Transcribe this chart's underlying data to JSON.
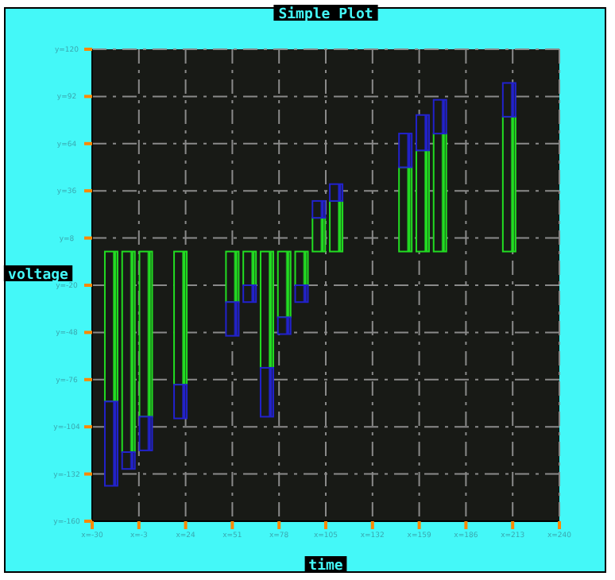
{
  "chart_data": {
    "type": "bar",
    "stacked": true,
    "title": "Simple Plot",
    "xlabel": "time",
    "ylabel": "voltage",
    "x": [
      -19,
      -9,
      1,
      21,
      51,
      61,
      71,
      81,
      91,
      101,
      111,
      151,
      161,
      171,
      211
    ],
    "series": [
      {
        "color": "#22dd22",
        "values": [
          -89,
          -119,
          -98,
          -79,
          -30,
          -20,
          -69,
          -39,
          -20,
          20,
          30,
          50,
          60,
          70,
          80
        ]
      },
      {
        "color": "#2222cc",
        "values": [
          -50,
          -10,
          -20,
          -20,
          -20,
          -10,
          -29,
          -10,
          -10,
          10,
          10,
          20,
          21,
          20,
          20
        ]
      }
    ],
    "xlim": [
      -30,
      240
    ],
    "ylim": [
      -160,
      120
    ],
    "xticks": [
      {
        "value": -30,
        "label": "x=-30"
      },
      {
        "value": -3,
        "label": "x=-3"
      },
      {
        "value": 24,
        "label": "x=24"
      },
      {
        "value": 51,
        "label": "x=51"
      },
      {
        "value": 78,
        "label": "x=78"
      },
      {
        "value": 105,
        "label": "x=105"
      },
      {
        "value": 132,
        "label": "x=132"
      },
      {
        "value": 159,
        "label": "x=159"
      },
      {
        "value": 186,
        "label": "x=186"
      },
      {
        "value": 213,
        "label": "x=213"
      },
      {
        "value": 240,
        "label": "x=240"
      }
    ],
    "yticks": [
      {
        "value": -160,
        "label": "y=-160"
      },
      {
        "value": -132,
        "label": "y=-132"
      },
      {
        "value": -104,
        "label": "y=-104"
      },
      {
        "value": -76,
        "label": "y=-76"
      },
      {
        "value": -48,
        "label": "y=-48"
      },
      {
        "value": -20,
        "label": "y=-20"
      },
      {
        "value": 8,
        "label": "y=8"
      },
      {
        "value": 36,
        "label": "y=36"
      },
      {
        "value": 64,
        "label": "y=64"
      },
      {
        "value": 92,
        "label": "y=92"
      },
      {
        "value": 120,
        "label": "y=120"
      }
    ],
    "grid": true
  }
}
